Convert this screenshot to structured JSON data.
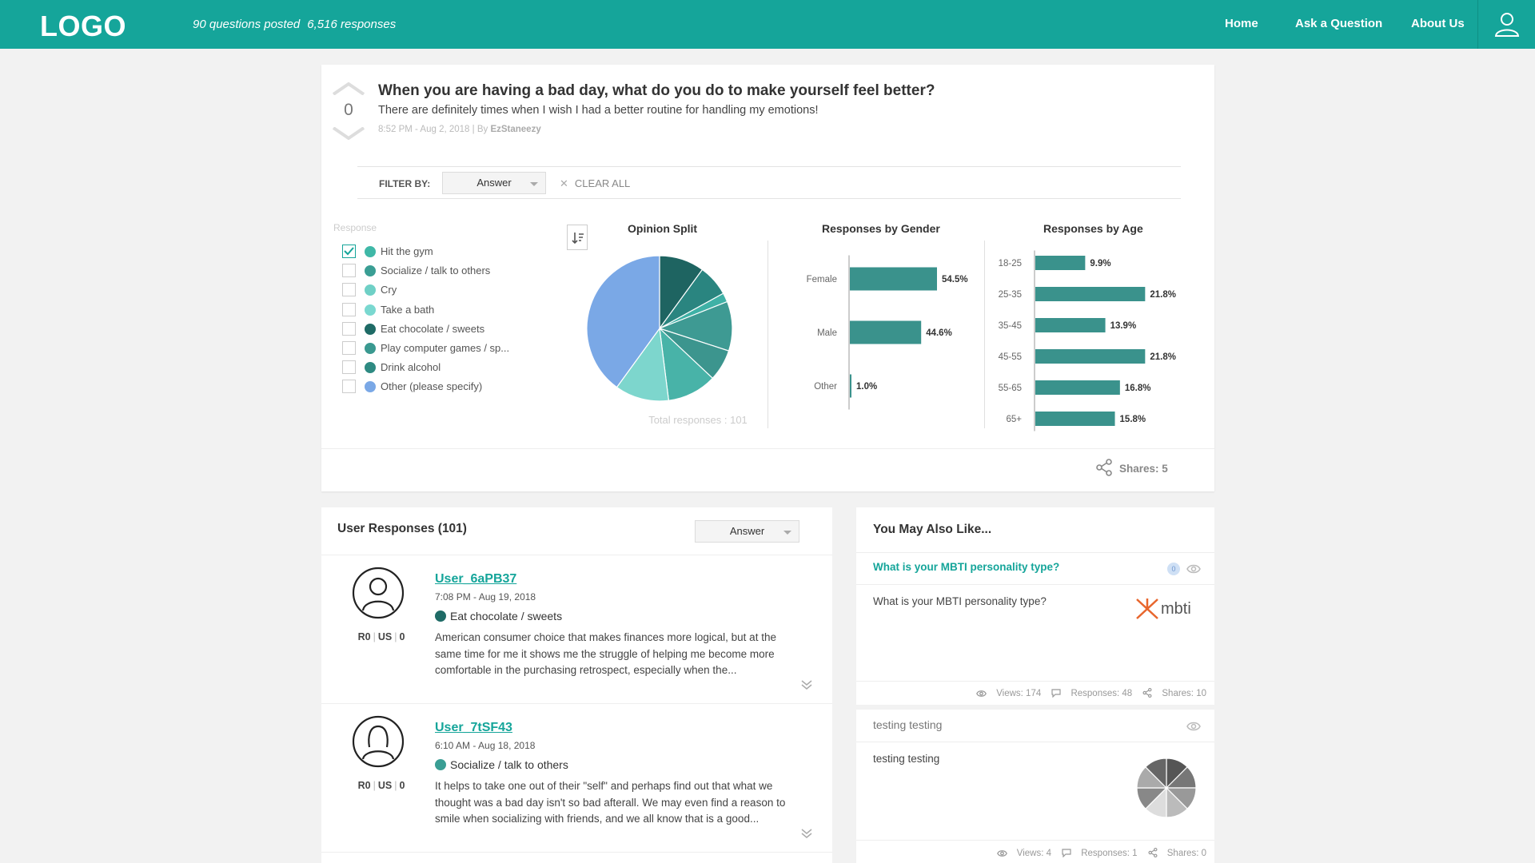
{
  "header": {
    "logo": "LOGO",
    "questions_posted": "90 questions posted",
    "responses": "6,516 responses",
    "nav": [
      "Home",
      "Ask a Question",
      "About Us"
    ]
  },
  "question": {
    "votes": "0",
    "title": "When you are having a bad day, what do you do to make yourself feel better?",
    "description": "There are definitely times when I wish I had a better routine for handling my emotions!",
    "meta_time": "8:52 PM - Aug 2, 2018 | By ",
    "meta_author": "EzStaneezy",
    "filter_label": "FILTER BY:",
    "filter_value": "Answer",
    "clear_all": "CLEAR ALL",
    "response_heading": "Response",
    "legend": [
      {
        "label": "Hit the gym",
        "color": "#3fb8a7",
        "checked": true
      },
      {
        "label": "Socialize / talk to others",
        "color": "#3a9e94",
        "checked": false
      },
      {
        "label": "Cry",
        "color": "#6fd0c6",
        "checked": false
      },
      {
        "label": "Take a bath",
        "color": "#7ad8d0",
        "checked": false
      },
      {
        "label": "Eat chocolate / sweets",
        "color": "#1f6b66",
        "checked": false
      },
      {
        "label": "Play computer games / sp...",
        "color": "#3a9990",
        "checked": false
      },
      {
        "label": "Drink alcohol",
        "color": "#2e8a82",
        "checked": false
      },
      {
        "label": "Other (please specify)",
        "color": "#7aa8e6",
        "checked": false
      }
    ],
    "total_responses": "Total responses : 101",
    "shares": "Shares: 5"
  },
  "chart_data": [
    {
      "type": "pie",
      "title": "Opinion Split",
      "slices": [
        {
          "value": 10,
          "color": "#1e6461"
        },
        {
          "value": 7,
          "color": "#2a8580"
        },
        {
          "value": 2,
          "color": "#3fb1a6"
        },
        {
          "value": 11,
          "color": "#3e9a93"
        },
        {
          "value": 7,
          "color": "#3c958e"
        },
        {
          "value": 11,
          "color": "#48b3a8"
        },
        {
          "value": 12,
          "color": "#7dd6cd"
        },
        {
          "value": 40,
          "color": "#7aa8e6"
        }
      ]
    },
    {
      "type": "bar",
      "orientation": "horizontal",
      "title": "Responses by Gender",
      "categories": [
        "Female",
        "Male",
        "Other"
      ],
      "values": [
        54.5,
        44.6,
        1.0
      ],
      "labels": [
        "54.5%",
        "44.6%",
        "1.0%"
      ],
      "color": "#3a928c"
    },
    {
      "type": "bar",
      "orientation": "horizontal",
      "title": "Responses by Age",
      "categories": [
        "18-25",
        "25-35",
        "35-45",
        "45-55",
        "55-65",
        "65+"
      ],
      "values": [
        9.9,
        21.8,
        13.9,
        21.8,
        16.8,
        15.8
      ],
      "labels": [
        "9.9%",
        "21.8%",
        "13.9%",
        "21.8%",
        "16.8%",
        "15.8%"
      ],
      "color": "#3a928c"
    }
  ],
  "user_responses": {
    "title": "User Responses (101)",
    "filter_value": "Answer",
    "items": [
      {
        "username": "User_6aPB37",
        "time": "7:08 PM - Aug 19, 2018",
        "answer": "Eat chocolate / sweets",
        "answer_color": "#1f6b66",
        "r": "R0",
        "loc": "US",
        "n": "0",
        "text": "American consumer choice that makes finances more logical, but at the same time for me it shows me the struggle of helping me become more comfortable in the purchasing retrospect, especially when the..."
      },
      {
        "username": "User_7tSF43",
        "time": "6:10 AM - Aug 18, 2018",
        "answer": "Socialize / talk to others",
        "answer_color": "#3a9e94",
        "r": "R0",
        "loc": "US",
        "n": "0",
        "text": "It helps to take one out of their \"self\" and perhaps find out that what we thought was a bad day isn't so bad afterall. We may even find a reason to smile when socializing with friends, and we all know that is a good..."
      }
    ]
  },
  "also_like": {
    "title": "You May Also Like...",
    "items": [
      {
        "link": "What is your MBTI personality type?",
        "desc": "What is your MBTI personality type?",
        "badge": "0",
        "logo_text": "mbti",
        "views": "Views: 174",
        "responses": "Responses: 48",
        "shares": "Shares: 10"
      },
      {
        "title": "testing testing",
        "desc": "testing testing",
        "views": "Views: 4",
        "responses": "Responses: 1",
        "shares": "Shares: 0"
      }
    ]
  }
}
